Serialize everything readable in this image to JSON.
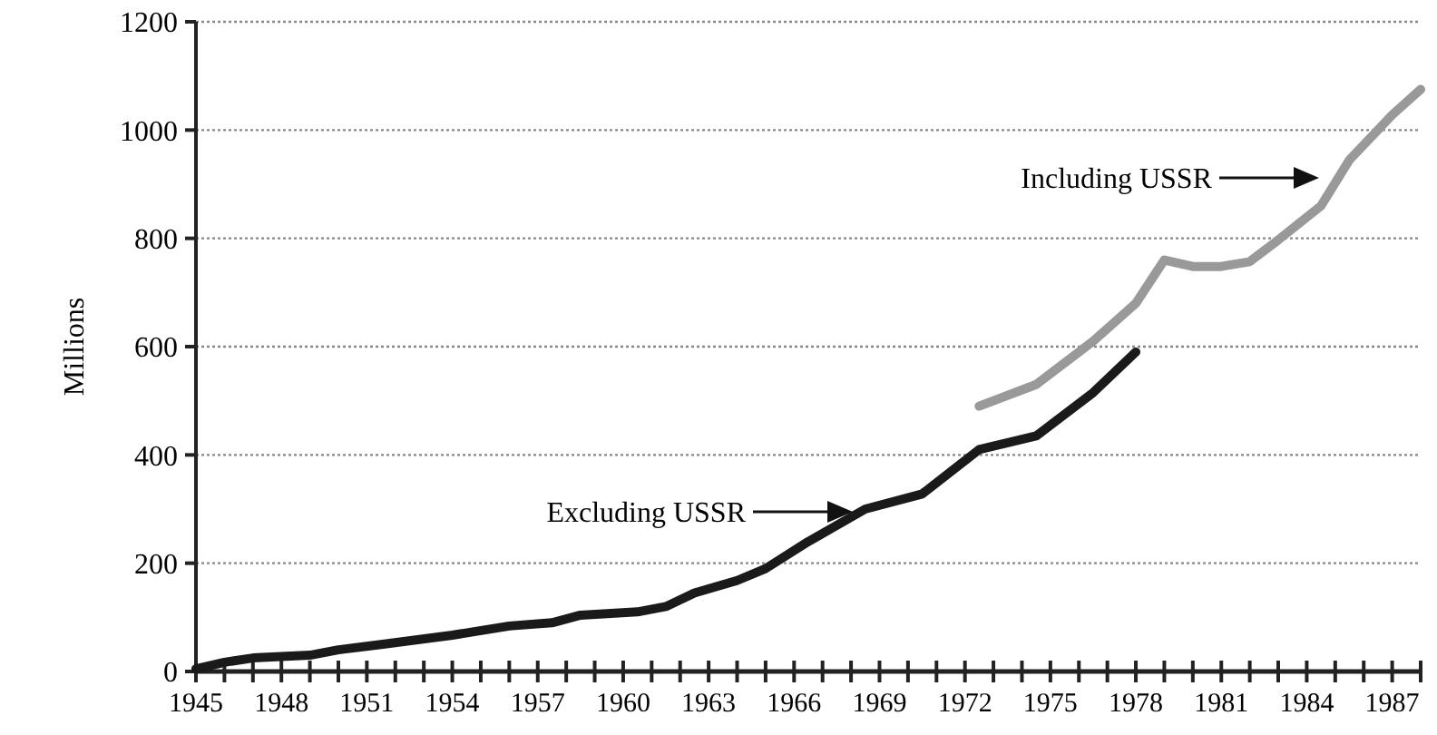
{
  "chart_data": {
    "type": "line",
    "ylabel": "Millions",
    "xlim": [
      1945,
      1988
    ],
    "xticks": [
      1945,
      {
        "value": 1946,
        "label": null
      },
      {
        "value": 1947,
        "label": null
      },
      1948,
      {
        "value": 1949,
        "label": null
      },
      {
        "value": 1950,
        "label": null
      },
      1951,
      {
        "value": 1952,
        "label": null
      },
      {
        "value": 1953,
        "label": null
      },
      1954,
      {
        "value": 1955,
        "label": null
      },
      {
        "value": 1956,
        "label": null
      },
      1957,
      {
        "value": 1958,
        "label": null
      },
      {
        "value": 1959,
        "label": null
      },
      1960,
      {
        "value": 1961,
        "label": null
      },
      {
        "value": 1962,
        "label": null
      },
      1963,
      {
        "value": 1964,
        "label": null
      },
      {
        "value": 1965,
        "label": null
      },
      1966,
      {
        "value": 1967,
        "label": null
      },
      {
        "value": 1968,
        "label": null
      },
      1969,
      {
        "value": 1970,
        "label": null
      },
      {
        "value": 1971,
        "label": null
      },
      1972,
      {
        "value": 1973,
        "label": null
      },
      {
        "value": 1974,
        "label": null
      },
      1975,
      {
        "value": 1976,
        "label": null
      },
      {
        "value": 1977,
        "label": null
      },
      1978,
      {
        "value": 1979,
        "label": null
      },
      {
        "value": 1980,
        "label": null
      },
      1981,
      {
        "value": 1982,
        "label": null
      },
      {
        "value": 1983,
        "label": null
      },
      1984,
      {
        "value": 1985,
        "label": null
      },
      {
        "value": 1986,
        "label": null
      },
      1987,
      {
        "value": 1988,
        "label": null
      }
    ],
    "ylim": [
      0,
      1200
    ],
    "yticks": [
      0,
      200,
      400,
      600,
      800,
      1000,
      1200
    ],
    "grid": "y",
    "marker": "none",
    "series": [
      {
        "color": "#1a1a1a",
        "x": [
          1945,
          1946,
          1947,
          1949,
          1950,
          1951.5,
          1954,
          1956,
          1957.5,
          1958.5,
          1960.5,
          1961.5,
          1962.5,
          1964,
          1965,
          1966.5,
          1968.5,
          1970.5,
          1972.5,
          1974.5,
          1976.5,
          1978
        ],
        "values": [
          5,
          17,
          25,
          30,
          40,
          50,
          67,
          84,
          90,
          104,
          110,
          120,
          145,
          168,
          190,
          240,
          300,
          328,
          410,
          435,
          515,
          590
        ]
      },
      {
        "color": "#999999",
        "x": [
          1972.5,
          1974.5,
          1976.5,
          1978,
          1979,
          1980,
          1981,
          1982,
          1983,
          1984.5,
          1985.5,
          1987,
          1988
        ],
        "values": [
          490,
          530,
          610,
          680,
          760,
          748,
          748,
          757,
          797,
          860,
          945,
          1028,
          1075
        ]
      }
    ],
    "annotations": [
      "Excluding USSR",
      "Including USSR"
    ]
  }
}
